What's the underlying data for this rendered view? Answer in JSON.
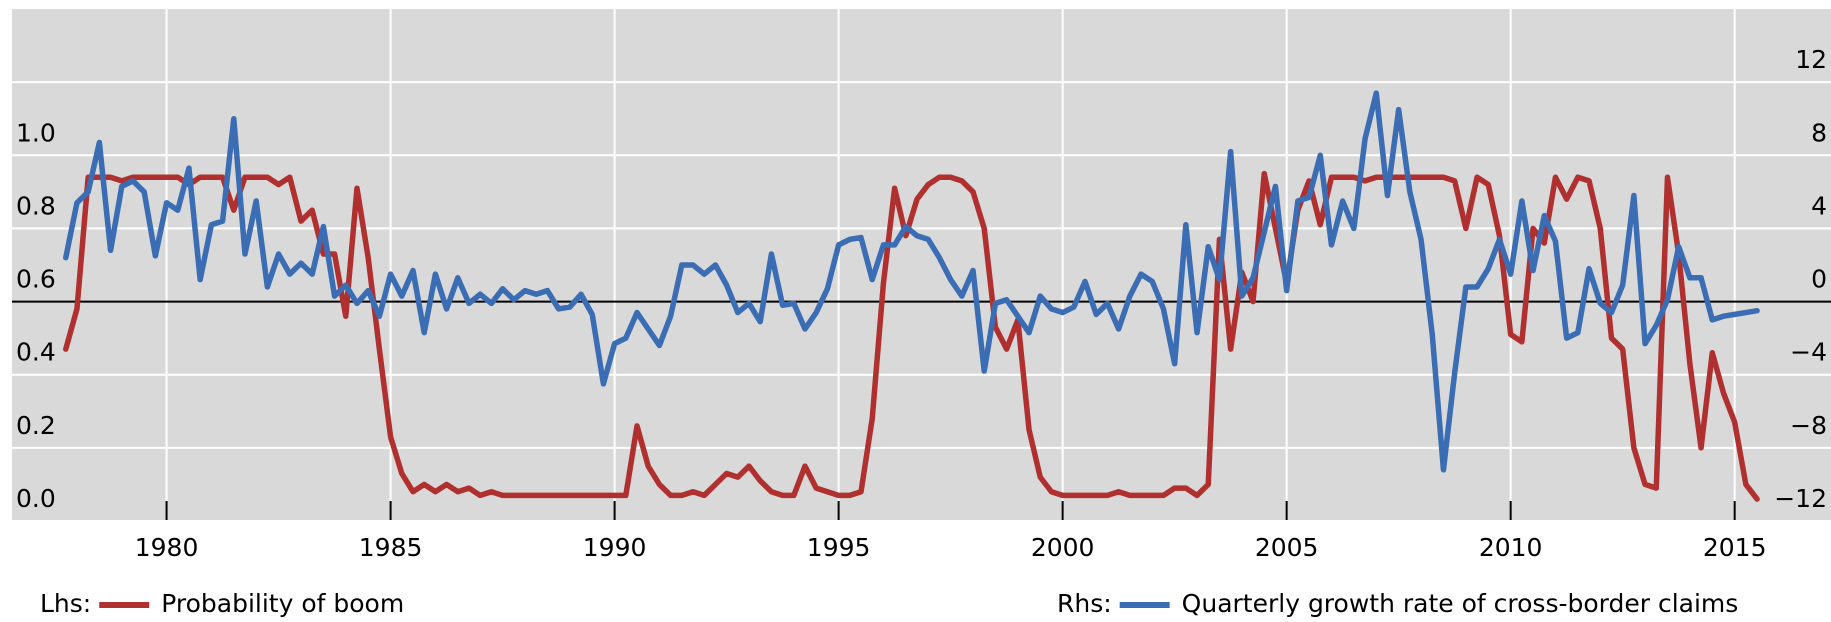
{
  "chart_data": {
    "type": "line",
    "x_start": 1977.75,
    "x_step": 0.25,
    "series": [
      {
        "name": "Probability of boom",
        "legend_prefix": "Lhs:",
        "color": "#b03030",
        "axis": "y",
        "values": [
          0.47,
          0.58,
          0.94,
          0.94,
          0.94,
          0.93,
          0.94,
          0.94,
          0.94,
          0.94,
          0.94,
          0.92,
          0.94,
          0.94,
          0.94,
          0.85,
          0.94,
          0.94,
          0.94,
          0.92,
          0.94,
          0.82,
          0.85,
          0.73,
          0.73,
          0.56,
          0.91,
          0.72,
          0.47,
          0.23,
          0.13,
          0.08,
          0.1,
          0.08,
          0.1,
          0.08,
          0.09,
          0.07,
          0.08,
          0.07,
          0.07,
          0.07,
          0.07,
          0.07,
          0.07,
          0.07,
          0.07,
          0.07,
          0.07,
          0.07,
          0.07,
          0.26,
          0.15,
          0.1,
          0.07,
          0.07,
          0.08,
          0.07,
          0.1,
          0.13,
          0.12,
          0.15,
          0.11,
          0.08,
          0.07,
          0.07,
          0.15,
          0.09,
          0.08,
          0.07,
          0.07,
          0.08,
          0.28,
          0.65,
          0.91,
          0.78,
          0.88,
          0.92,
          0.94,
          0.94,
          0.93,
          0.9,
          0.8,
          0.53,
          0.47,
          0.55,
          0.25,
          0.12,
          0.08,
          0.07,
          0.07,
          0.07,
          0.07,
          0.07,
          0.08,
          0.07,
          0.07,
          0.07,
          0.07,
          0.09,
          0.09,
          0.07,
          0.1,
          0.77,
          0.47,
          0.68,
          0.6,
          0.95,
          0.8,
          0.65,
          0.85,
          0.93,
          0.81,
          0.94,
          0.94,
          0.94,
          0.93,
          0.94,
          0.94,
          0.94,
          0.94,
          0.94,
          0.94,
          0.94,
          0.93,
          0.8,
          0.94,
          0.92,
          0.78,
          0.51,
          0.49,
          0.8,
          0.76,
          0.94,
          0.88,
          0.94,
          0.93,
          0.8,
          0.5,
          0.47,
          0.2,
          0.1,
          0.09,
          0.94,
          0.73,
          0.43,
          0.2,
          0.46,
          0.35,
          0.27,
          0.1,
          0.06
        ]
      },
      {
        "name": "Quarterly growth rate of cross-border claims",
        "legend_prefix": "Rhs:",
        "color": "#3a6db3",
        "axis": "y2",
        "values": [
          2.4,
          5.4,
          6,
          8.7,
          2.8,
          6.3,
          6.6,
          6,
          2.5,
          5.4,
          5,
          7.3,
          1.2,
          4.2,
          4.4,
          10,
          2.6,
          5.5,
          0.8,
          2.6,
          1.5,
          2.1,
          1.5,
          4.1,
          0.3,
          0.9,
          -0.1,
          0.6,
          -0.8,
          1.5,
          0.3,
          1.7,
          -1.7,
          1.5,
          -0.4,
          1.3,
          -0.1,
          0.4,
          -0.1,
          0.7,
          0.1,
          0.6,
          0.4,
          0.6,
          -0.4,
          -0.3,
          0.4,
          -0.7,
          -4.5,
          -2.3,
          -2,
          -0.6,
          -1.5,
          -2.4,
          -0.8,
          2,
          2,
          1.5,
          2,
          0.9,
          -0.6,
          -0.1,
          -1.1,
          2.6,
          -0.2,
          -0.1,
          -1.5,
          -0.6,
          0.7,
          3.1,
          3.4,
          3.5,
          1.2,
          3.1,
          3.1,
          4.1,
          3.6,
          3.4,
          2.4,
          1.2,
          0.3,
          1.7,
          -3.8,
          -0.1,
          0.1,
          -0.8,
          -1.7,
          0.3,
          -0.4,
          -0.6,
          -0.3,
          1.1,
          -0.7,
          -0.1,
          -1.5,
          0.3,
          1.5,
          1.1,
          -0.4,
          -3.4,
          4.2,
          -1.7,
          3,
          1.2,
          8.2,
          0.3,
          1.3,
          3.8,
          6.3,
          0.6,
          5.5,
          5.7,
          8,
          3.1,
          5.5,
          4,
          8.9,
          11.4,
          5.8,
          10.5,
          6,
          3.4,
          -1.8,
          -9.2,
          -3.9,
          0.8,
          0.8,
          1.8,
          3.4,
          1.5,
          5.5,
          1.7,
          4.7,
          3.3,
          -2,
          -1.7,
          1.8,
          -0.1,
          -0.6,
          0.9,
          5.8,
          -2.3,
          -1.3,
          0.1,
          3,
          1.3,
          1.3,
          -1,
          -0.8,
          -0.7,
          -0.6,
          -0.5
        ]
      }
    ],
    "xlim": [
      1976.55,
      2017.15
    ],
    "xticks": [
      1980,
      1985,
      1990,
      1995,
      2000,
      2005,
      2010,
      2015
    ],
    "ylim": [
      0,
      1.4
    ],
    "yticks": [
      {
        "value": 0,
        "label": "0.0"
      },
      0.2,
      0.4,
      0.6,
      0.8,
      {
        "value": 1,
        "label": "1.0"
      }
    ],
    "y2lim": [
      -12,
      16
    ],
    "y2ticks": [
      {
        "value": -12,
        "label": "−12"
      },
      {
        "value": -8,
        "label": "−8"
      },
      {
        "value": -4,
        "label": "−4"
      },
      0,
      4,
      8,
      12
    ],
    "grid": true,
    "zero_line": true,
    "background": "#d9d9d9"
  }
}
